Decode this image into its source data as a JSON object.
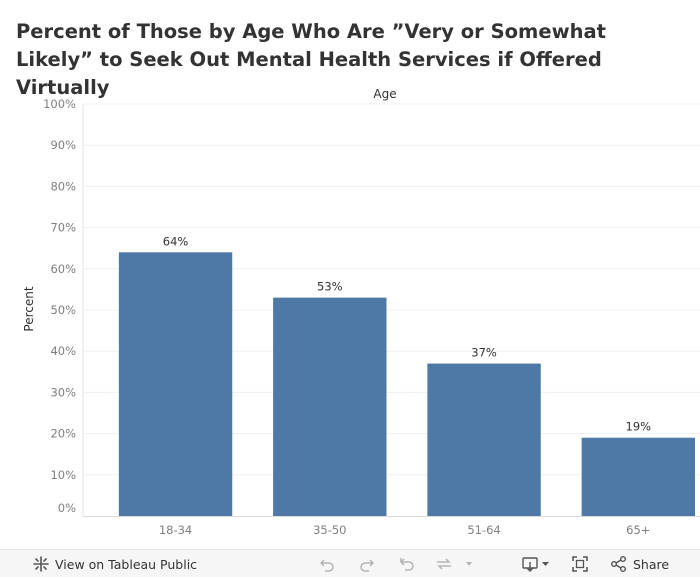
{
  "chart_data": {
    "type": "bar",
    "title": "Percent of Those by Age Who Are ”Very or Somewhat Likely” to Seek Out Mental Health Services if Offered Virtually",
    "column_header": "Age",
    "xlabel": "",
    "ylabel": "Percent",
    "categories": [
      "18-34",
      "35-50",
      "51-64",
      "65+"
    ],
    "values": [
      64,
      53,
      37,
      19
    ],
    "data_labels": [
      "64%",
      "53%",
      "37%",
      "19%"
    ],
    "y_ticks": [
      0,
      10,
      20,
      30,
      40,
      50,
      60,
      70,
      80,
      90,
      100
    ],
    "y_tick_labels": [
      "0%",
      "10%",
      "20%",
      "30%",
      "40%",
      "50%",
      "60%",
      "70%",
      "80%",
      "90%",
      "100%"
    ],
    "ylim": [
      0,
      100
    ],
    "grid": true,
    "colors": {
      "bar": "#4e79a7",
      "text": "#333333",
      "tick": "#7f7f7f",
      "grid": "#efefef"
    }
  },
  "toolbar": {
    "view_label": "View on Tableau Public",
    "share_label": "Share",
    "icons": [
      "tableau-logo-icon",
      "undo-icon",
      "redo-icon",
      "revert-icon",
      "refresh-icon",
      "pause-icon",
      "download-icon",
      "fullscreen-icon",
      "share-icon"
    ]
  }
}
